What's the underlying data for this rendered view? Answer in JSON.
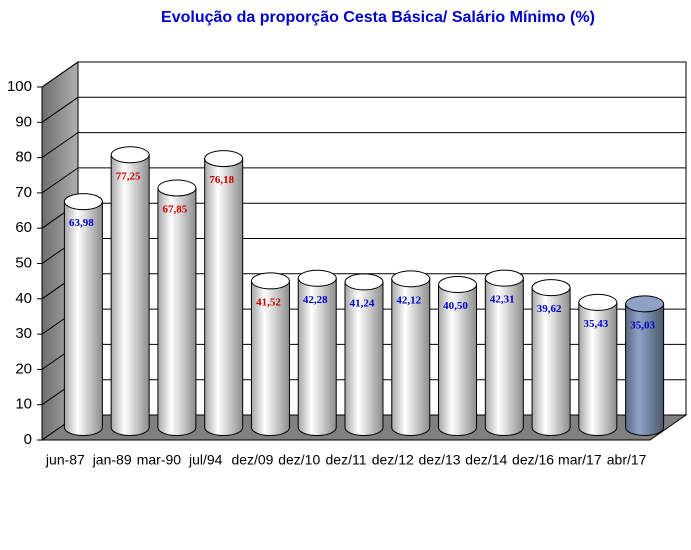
{
  "chart_data": {
    "type": "bar",
    "title": "Evolução da proporção Cesta Básica/ Salário Mínimo (%)",
    "categories": [
      "jun-87",
      "jan-89",
      "mar-90",
      "jul/94",
      "dez/09",
      "dez/10",
      "dez/11",
      "dez/12",
      "dez/13",
      "dez/14",
      "dez/16",
      "mar/17",
      "abr/17"
    ],
    "values": [
      63.98,
      77.25,
      67.85,
      76.18,
      41.52,
      42.28,
      41.24,
      42.12,
      40.5,
      42.31,
      39.62,
      35.43,
      35.03
    ],
    "value_labels": [
      "63,98",
      "77,25",
      "67,85",
      "76,18",
      "41,52",
      "42,28",
      "41,24",
      "42,12",
      "40,50",
      "42,31",
      "39,62",
      "35,43",
      "35,03"
    ],
    "colors": [
      "#ffffff",
      "#ffffff",
      "#ffffff",
      "#ffffff",
      "#ffffff",
      "#ffffff",
      "#ffffff",
      "#ffffff",
      "#ffffff",
      "#ffffff",
      "#ffffff",
      "#ffffff",
      "#8ea2c6"
    ],
    "label_colors": [
      "#0000cc",
      "#cc0000",
      "#cc0000",
      "#cc0000",
      "#cc0000",
      "#0000cc",
      "#0000cc",
      "#0000cc",
      "#0000cc",
      "#0000cc",
      "#0000cc",
      "#0000cc",
      "#0000cc"
    ],
    "ylim": [
      0,
      100
    ],
    "yticks": [
      0,
      10,
      20,
      30,
      40,
      50,
      60,
      70,
      80,
      90,
      100
    ],
    "grid": true
  }
}
